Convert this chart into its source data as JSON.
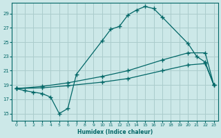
{
  "xlabel": "Humidex (Indice chaleur)",
  "bg_color": "#cce8e8",
  "grid_color": "#aacccc",
  "line_color": "#006666",
  "xlim": [
    -0.5,
    23.5
  ],
  "ylim": [
    14.0,
    30.5
  ],
  "yticks": [
    15,
    17,
    19,
    21,
    23,
    25,
    27,
    29
  ],
  "xticks": [
    0,
    1,
    2,
    3,
    4,
    5,
    6,
    7,
    8,
    9,
    10,
    11,
    12,
    13,
    14,
    15,
    16,
    17,
    18,
    19,
    20,
    21,
    22,
    23
  ],
  "line1_x": [
    0,
    1,
    2,
    3,
    4,
    5,
    6,
    7,
    10,
    11,
    12,
    13,
    14,
    15,
    16,
    17,
    20,
    21,
    22,
    23
  ],
  "line1_y": [
    18.5,
    18.2,
    18.0,
    17.8,
    17.3,
    15.0,
    15.7,
    20.5,
    25.2,
    26.8,
    27.2,
    28.8,
    29.5,
    30.0,
    29.7,
    28.5,
    24.8,
    23.0,
    22.2,
    19.0
  ],
  "line2_x": [
    0,
    3,
    6,
    10,
    13,
    17,
    20,
    22,
    23
  ],
  "line2_y": [
    18.5,
    18.8,
    19.3,
    20.2,
    21.0,
    22.5,
    23.5,
    23.5,
    19.0
  ],
  "line3_x": [
    0,
    3,
    6,
    10,
    13,
    17,
    20,
    22,
    23
  ],
  "line3_y": [
    18.5,
    18.6,
    18.9,
    19.4,
    19.9,
    21.0,
    21.8,
    22.0,
    19.0
  ]
}
